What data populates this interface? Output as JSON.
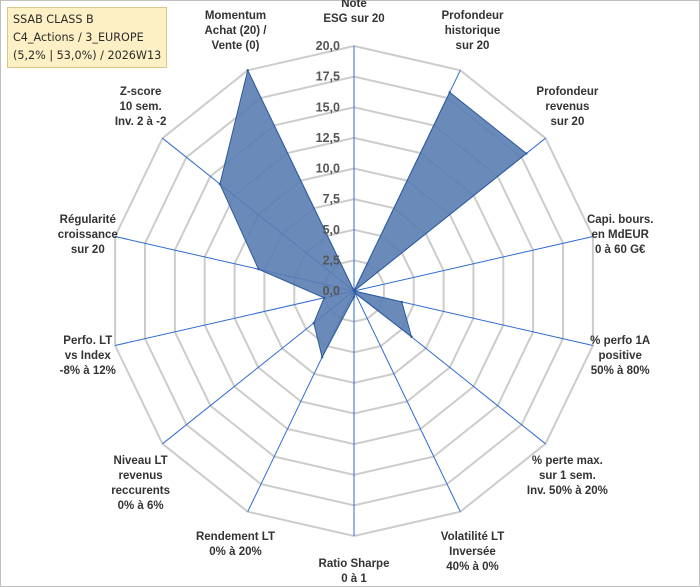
{
  "info": {
    "line1": "SSAB CLASS B",
    "line2": "C4_Actions / 3_EUROPE",
    "line3": "(5,2% | 53,0%) / 2026W13"
  },
  "chart_data": {
    "type": "radar",
    "rmax": 20,
    "tick_labels": [
      "0,0",
      "2,5",
      "5,0",
      "7,5",
      "10,0",
      "12,5",
      "15,0",
      "17,5",
      "20,0"
    ],
    "axes": [
      [
        "Note",
        "ESG sur 20"
      ],
      [
        "Profondeur",
        "historique",
        "sur 20"
      ],
      [
        "Profondeur",
        "revenus",
        "sur 20"
      ],
      [
        "Capi. bours.",
        "en MdEUR",
        "0 à 60 G€"
      ],
      [
        "% perfo 1A",
        "positive",
        "50% à 80%"
      ],
      [
        "% perte max.",
        "sur 1 sem.",
        "Inv. 50% à 20%"
      ],
      [
        "Volatilité LT",
        "Inversée",
        "40% à 0%"
      ],
      [
        "Ratio Sharpe",
        "0 à 1"
      ],
      [
        "Rendement LT",
        "0% à 20%"
      ],
      [
        "Niveau LT",
        "revenus",
        "reccurents",
        "0% à 6%"
      ],
      [
        "Perfo. LT",
        "vs Index",
        "-8% à 12%"
      ],
      [
        "Régularité",
        "croissance",
        "sur 20"
      ],
      [
        "Z-score",
        "10 sem.",
        "Inv. 2 à -2"
      ],
      [
        "Momentum",
        "Achat (20) /",
        "Vente (0)"
      ]
    ],
    "values": [
      0,
      18,
      18,
      0,
      4,
      6,
      0.2,
      0.5,
      6,
      4.2,
      2.5,
      8,
      14,
      20
    ],
    "colors": {
      "fill": "#5a7db3",
      "stroke": "#2e5a9c",
      "grid": "#cccccc",
      "spoke": "#2e6bd1"
    },
    "grid": true
  }
}
